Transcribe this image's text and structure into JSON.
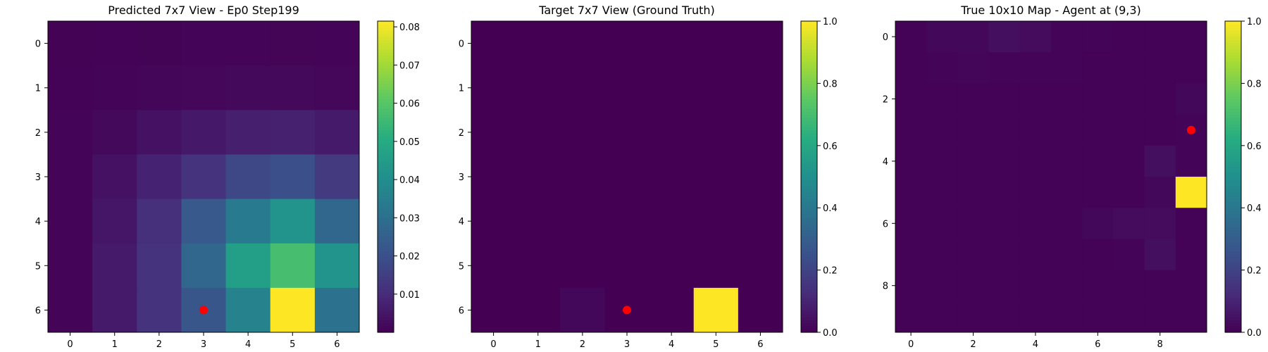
{
  "chart_data": [
    {
      "type": "heatmap",
      "title": "Predicted 7x7 View - Ep0 Step199",
      "xticks": [
        "0",
        "1",
        "2",
        "3",
        "4",
        "5",
        "6"
      ],
      "yticks": [
        "0",
        "1",
        "2",
        "3",
        "4",
        "5",
        "6"
      ],
      "tick_positions": [
        0,
        1,
        2,
        3,
        4,
        5,
        6
      ],
      "extent": [
        -0.5,
        6.5
      ],
      "cmap": "viridis",
      "vmin": 0.0,
      "vmax": 0.0815,
      "values": [
        [
          0.0004,
          0.0005,
          0.0006,
          0.0007,
          0.0008,
          0.0009,
          0.0007
        ],
        [
          0.0005,
          0.0008,
          0.0011,
          0.0014,
          0.0018,
          0.002,
          0.0014
        ],
        [
          0.0008,
          0.002,
          0.004,
          0.0055,
          0.007,
          0.0075,
          0.006
        ],
        [
          0.001,
          0.004,
          0.008,
          0.012,
          0.018,
          0.02,
          0.014
        ],
        [
          0.001,
          0.005,
          0.011,
          0.023,
          0.034,
          0.042,
          0.027
        ],
        [
          0.001,
          0.006,
          0.012,
          0.027,
          0.046,
          0.057,
          0.042
        ],
        [
          0.001,
          0.006,
          0.012,
          0.022,
          0.036,
          0.0815,
          0.031
        ]
      ],
      "marker": {
        "x": 3,
        "y": 6,
        "color": "#ff0000"
      },
      "colorbar": {
        "ticks": [
          0.01,
          0.02,
          0.03,
          0.04,
          0.05,
          0.06,
          0.07,
          0.08
        ],
        "labels": [
          "0.01",
          "0.02",
          "0.03",
          "0.04",
          "0.05",
          "0.06",
          "0.07",
          "0.08"
        ]
      }
    },
    {
      "type": "heatmap",
      "title": "Target 7x7 View (Ground Truth)",
      "xticks": [
        "0",
        "1",
        "2",
        "3",
        "4",
        "5",
        "6"
      ],
      "yticks": [
        "0",
        "1",
        "2",
        "3",
        "4",
        "5",
        "6"
      ],
      "tick_positions": [
        0,
        1,
        2,
        3,
        4,
        5,
        6
      ],
      "extent": [
        -0.5,
        6.5
      ],
      "cmap": "viridis",
      "vmin": 0.0,
      "vmax": 1.0,
      "values": [
        [
          0,
          0,
          0,
          0,
          0,
          0,
          0
        ],
        [
          0,
          0,
          0,
          0,
          0,
          0,
          0
        ],
        [
          0,
          0,
          0,
          0,
          0,
          0,
          0
        ],
        [
          0,
          0,
          0,
          0,
          0,
          0,
          0
        ],
        [
          0,
          0,
          0,
          0,
          0,
          0,
          0
        ],
        [
          0,
          0,
          0,
          0,
          0,
          0,
          0
        ],
        [
          0,
          0,
          0.02,
          0,
          0,
          1.0,
          0
        ]
      ],
      "marker": {
        "x": 3,
        "y": 6,
        "color": "#ff0000"
      },
      "colorbar": {
        "ticks": [
          0.0,
          0.2,
          0.4,
          0.6,
          0.8,
          1.0
        ],
        "labels": [
          "0.0",
          "0.2",
          "0.4",
          "0.6",
          "0.8",
          "1.0"
        ]
      }
    },
    {
      "type": "heatmap",
      "title": "True 10x10 Map - Agent at (9,3)",
      "xticks": [
        "0",
        "2",
        "4",
        "6",
        "8"
      ],
      "yticks": [
        "0",
        "2",
        "4",
        "6",
        "8"
      ],
      "tick_positions": [
        0,
        2,
        4,
        6,
        8
      ],
      "extent": [
        -0.5,
        9.5
      ],
      "cmap": "viridis",
      "vmin": 0.0,
      "vmax": 1.0,
      "values": [
        [
          0.005,
          0.02,
          0.02,
          0.04,
          0.03,
          0.01,
          0.01,
          0.005,
          0.005,
          0.005
        ],
        [
          0.005,
          0.01,
          0.015,
          0.01,
          0.01,
          0.01,
          0.005,
          0.005,
          0.005,
          0.005
        ],
        [
          0.005,
          0.005,
          0.005,
          0.005,
          0.005,
          0.005,
          0.005,
          0.005,
          0.005,
          0.02
        ],
        [
          0.005,
          0.005,
          0.005,
          0.005,
          0.005,
          0.005,
          0.005,
          0.005,
          0.005,
          0.01
        ],
        [
          0.005,
          0.005,
          0.005,
          0.005,
          0.005,
          0.005,
          0.005,
          0.005,
          0.04,
          0.01
        ],
        [
          0.005,
          0.005,
          0.005,
          0.005,
          0.005,
          0.005,
          0.005,
          0.005,
          0.02,
          1.0
        ],
        [
          0.005,
          0.005,
          0.005,
          0.005,
          0.005,
          0.005,
          0.02,
          0.03,
          0.03,
          0.005
        ],
        [
          0.005,
          0.005,
          0.005,
          0.005,
          0.005,
          0.005,
          0.005,
          0.01,
          0.04,
          0.005
        ],
        [
          0.005,
          0.005,
          0.005,
          0.005,
          0.005,
          0.005,
          0.005,
          0.005,
          0.005,
          0.005
        ],
        [
          0.005,
          0.005,
          0.005,
          0.005,
          0.005,
          0.005,
          0.005,
          0.005,
          0.005,
          0.005
        ]
      ],
      "marker": {
        "x": 9,
        "y": 3,
        "color": "#ff0000"
      },
      "colorbar": {
        "ticks": [
          0.0,
          0.2,
          0.4,
          0.6,
          0.8,
          1.0
        ],
        "labels": [
          "0.0",
          "0.2",
          "0.4",
          "0.6",
          "0.8",
          "1.0"
        ]
      }
    }
  ]
}
